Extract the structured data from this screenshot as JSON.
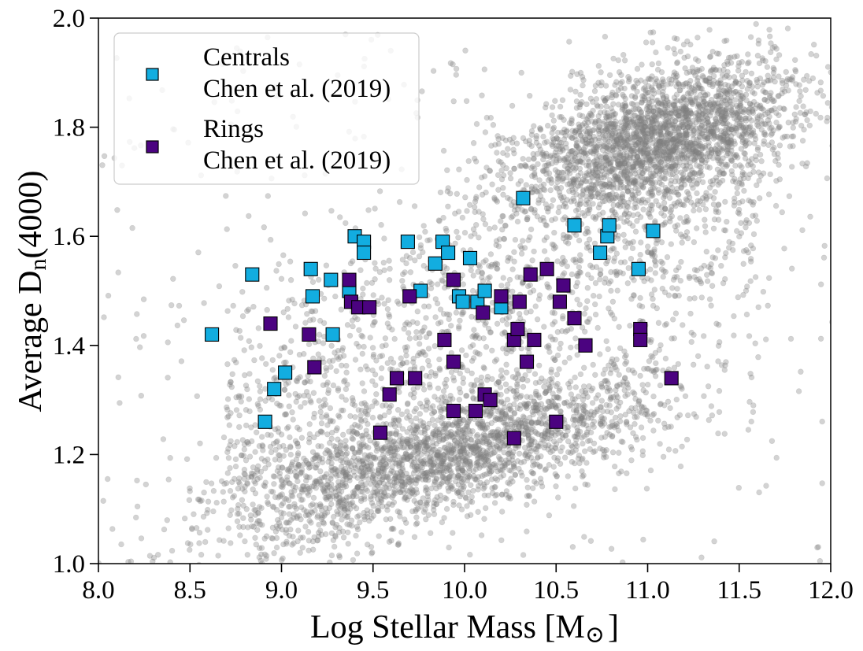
{
  "chart_data": {
    "type": "scatter",
    "xlabel": "Log Stellar Mass [M",
    "xlabel_unit_symbol": "⊙",
    "xlabel_suffix": "]",
    "ylabel": "Average D",
    "ylabel_subscript": "n",
    "ylabel_suffix": "(4000)",
    "xlim": [
      8.0,
      12.0
    ],
    "ylim": [
      1.0,
      2.0
    ],
    "xticks": [
      "8.0",
      "8.5",
      "9.0",
      "9.5",
      "10.0",
      "10.5",
      "11.0",
      "11.5",
      "12.0"
    ],
    "yticks": [
      "1.0",
      "1.2",
      "1.4",
      "1.6",
      "1.8",
      "2.0"
    ],
    "legend_position": "top-left",
    "background": {
      "name": "Background galaxies",
      "color": "#808080",
      "note": "dense grey cloud: a low-mass/blue sequence around Dn~1.2 and a high-mass/red sequence around Dn~1.8"
    },
    "series": [
      {
        "name": "Centrals",
        "label_lines": [
          "Centrals",
          "Chen et al. (2019)"
        ],
        "color": "#12ade0",
        "marker": "square",
        "x": [
          8.62,
          8.84,
          8.91,
          8.96,
          9.02,
          9.16,
          9.17,
          9.27,
          9.28,
          9.37,
          9.4,
          9.45,
          9.45,
          9.69,
          9.76,
          9.84,
          9.88,
          9.91,
          9.97,
          9.99,
          10.03,
          10.07,
          10.11,
          10.2,
          10.32,
          10.6,
          10.74,
          10.78,
          10.79,
          10.95,
          11.03
        ],
        "y": [
          1.42,
          1.53,
          1.26,
          1.32,
          1.35,
          1.54,
          1.49,
          1.52,
          1.42,
          1.5,
          1.6,
          1.59,
          1.57,
          1.59,
          1.5,
          1.55,
          1.59,
          1.57,
          1.49,
          1.48,
          1.56,
          1.48,
          1.5,
          1.47,
          1.67,
          1.62,
          1.57,
          1.6,
          1.62,
          1.54,
          1.61
        ]
      },
      {
        "name": "Rings",
        "label_lines": [
          "Rings",
          "Chen et al. (2019)"
        ],
        "color": "#4b0380",
        "marker": "square",
        "x": [
          8.94,
          9.15,
          9.18,
          9.37,
          9.38,
          9.42,
          9.48,
          9.54,
          9.59,
          9.63,
          9.7,
          9.73,
          9.89,
          9.94,
          9.94,
          9.94,
          10.06,
          10.1,
          10.11,
          10.14,
          10.2,
          10.27,
          10.27,
          10.29,
          10.3,
          10.34,
          10.36,
          10.38,
          10.45,
          10.5,
          10.52,
          10.54,
          10.6,
          10.66,
          10.96,
          10.96,
          11.13
        ],
        "y": [
          1.44,
          1.42,
          1.36,
          1.52,
          1.48,
          1.47,
          1.47,
          1.24,
          1.31,
          1.34,
          1.49,
          1.34,
          1.41,
          1.52,
          1.37,
          1.28,
          1.28,
          1.46,
          1.31,
          1.3,
          1.49,
          1.41,
          1.23,
          1.43,
          1.48,
          1.37,
          1.53,
          1.41,
          1.54,
          1.26,
          1.48,
          1.51,
          1.45,
          1.4,
          1.43,
          1.41,
          1.34
        ]
      }
    ]
  }
}
